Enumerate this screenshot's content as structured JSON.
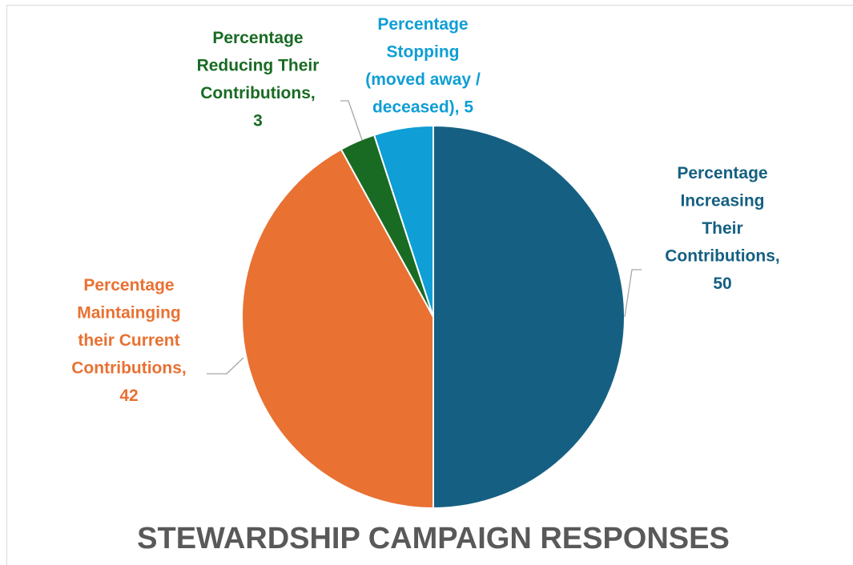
{
  "chart_data": {
    "type": "pie",
    "title": "STEWARDSHIP CAMPAIGN RESPONSES",
    "slices": [
      {
        "label": [
          "Percentage",
          "Increasing",
          "Their",
          "Contributions,",
          "50"
        ],
        "name": "Percentage Increasing Their Contributions",
        "value": 50,
        "color": "#156082"
      },
      {
        "label": [
          "Percentage",
          "Maintainging",
          "their Current",
          "Contributions,",
          "42"
        ],
        "name": "Percentage Maintainging their Current Contributions",
        "value": 42,
        "color": "#E97132"
      },
      {
        "label": [
          "Percentage",
          "Reducing Their",
          "Contributions,",
          "3"
        ],
        "name": "Percentage Reducing Their Contributions",
        "value": 3,
        "color": "#196B24"
      },
      {
        "label": [
          "Percentage",
          "Stopping",
          "(moved away /",
          "deceased), 5"
        ],
        "name": "Percentage Stopping (moved away / deceased)",
        "value": 5,
        "color": "#0F9ED5"
      }
    ],
    "legend": "none",
    "data_labels": "outside with leader lines"
  }
}
